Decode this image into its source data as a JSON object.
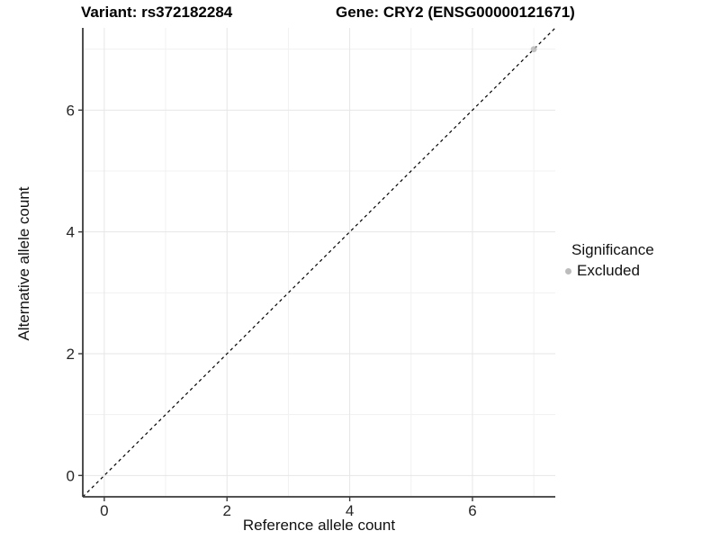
{
  "header": {
    "variant_title": "Variant: rs372182284",
    "gene_title": "Gene: CRY2 (ENSG00000121671)"
  },
  "legend": {
    "title": "Significance",
    "items": [
      {
        "label": "Excluded",
        "color": "#bcbcbc"
      }
    ]
  },
  "chart_data": {
    "type": "scatter",
    "title": "Variant: rs372182284  Gene: CRY2 (ENSG00000121671)",
    "xlabel": "Reference allele count",
    "ylabel": "Alternative allele count",
    "xlim": [
      -0.35,
      7.35
    ],
    "ylim": [
      -0.35,
      7.35
    ],
    "xticks": [
      0,
      2,
      4,
      6
    ],
    "yticks": [
      0,
      2,
      4,
      6
    ],
    "minor_xticks": [
      1,
      3,
      5,
      7
    ],
    "minor_yticks": [
      1,
      3,
      5,
      7
    ],
    "grid": true,
    "legend_position": "right",
    "identity_line": {
      "style": "dashed",
      "from": [
        -0.35,
        -0.35
      ],
      "to": [
        7.35,
        7.35
      ],
      "color": "#000000"
    },
    "series": [
      {
        "name": "Excluded",
        "color": "#bcbcbc",
        "points": [
          [
            7,
            7
          ]
        ]
      }
    ],
    "colors": {
      "grid_major": "#e6e6e6",
      "grid_minor": "#f1f1f1",
      "axis_line": "#3a3a3a",
      "tick_label": "#262626"
    }
  }
}
